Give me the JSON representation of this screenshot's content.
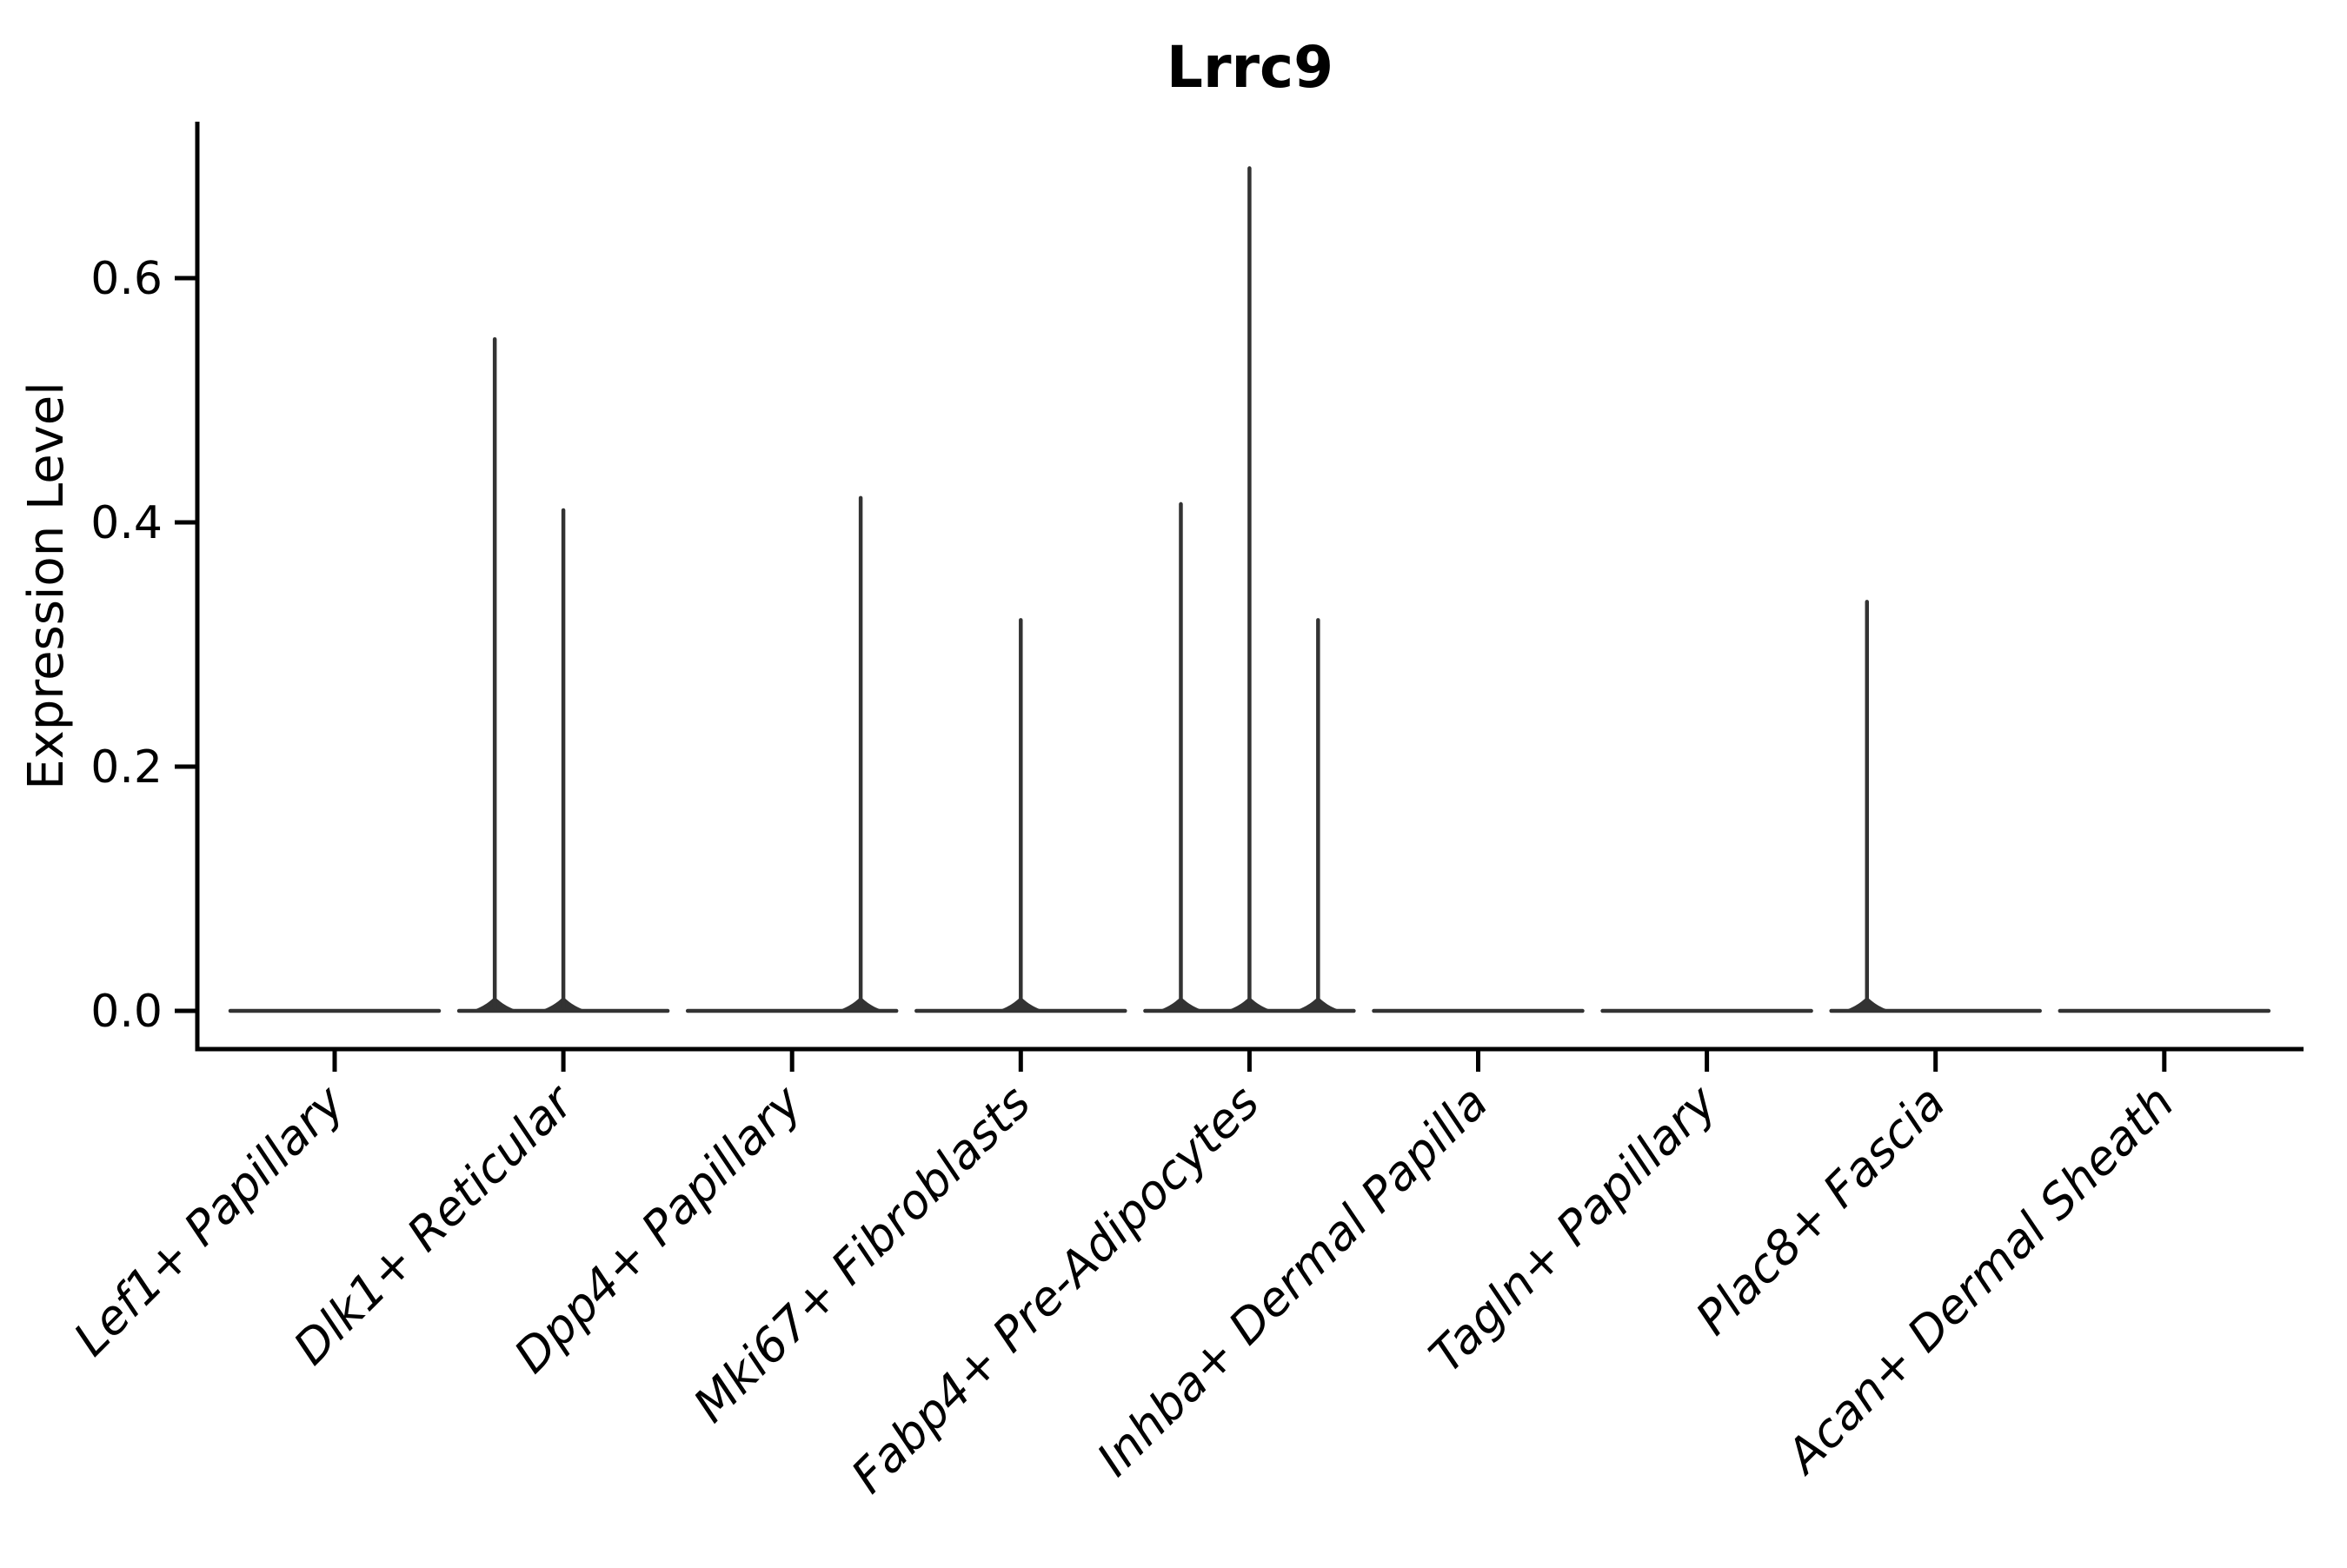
{
  "chart_data": {
    "type": "violin",
    "title": "Lrrc9",
    "ylabel": "Expression Level",
    "xlabel": "",
    "grid": false,
    "legend": null,
    "background": "#ffffff",
    "categories": [
      "Lef1+ Papillary",
      "Dlk1+ Reticular",
      "Dpp4+ Papillary",
      "Mki67+ Fibroblasts",
      "Fabp4+ Pre-Adipocytes",
      "Inhba+ Dermal Papilla",
      "Tagln+ Papillary",
      "Plac8+ Fascia",
      "Acan+ Dermal Sheath"
    ],
    "yticks": [
      0.0,
      0.2,
      0.4,
      0.6
    ],
    "ytick_labels": [
      "0.0",
      "0.2",
      "0.4",
      "0.6"
    ],
    "ylim": [
      -0.03,
      0.73
    ],
    "x_label_rotation_deg": 45,
    "x_labels_italic": true,
    "violin_color": "#333333",
    "axis_color": "#000000",
    "violins": [
      {
        "category": "Lef1+ Papillary",
        "baseline_value": 0.0,
        "spikes": []
      },
      {
        "category": "Dlk1+ Reticular",
        "baseline_value": 0.0,
        "spikes": [
          {
            "x_offset": -0.3,
            "value": 0.55
          },
          {
            "x_offset": 0.0,
            "value": 0.41
          }
        ]
      },
      {
        "category": "Dpp4+ Papillary",
        "baseline_value": 0.0,
        "spikes": [
          {
            "x_offset": 0.3,
            "value": 0.42
          }
        ]
      },
      {
        "category": "Mki67+ Fibroblasts",
        "baseline_value": 0.0,
        "spikes": [
          {
            "x_offset": 0.0,
            "value": 0.32
          }
        ]
      },
      {
        "category": "Fabp4+ Pre-Adipocytes",
        "baseline_value": 0.0,
        "spikes": [
          {
            "x_offset": -0.3,
            "value": 0.415
          },
          {
            "x_offset": 0.0,
            "value": 0.69
          },
          {
            "x_offset": 0.3,
            "value": 0.32
          }
        ]
      },
      {
        "category": "Inhba+ Dermal Papilla",
        "baseline_value": 0.0,
        "spikes": []
      },
      {
        "category": "Tagln+ Papillary",
        "baseline_value": 0.0,
        "spikes": []
      },
      {
        "category": "Plac8+ Fascia",
        "baseline_value": 0.0,
        "spikes": [
          {
            "x_offset": -0.3,
            "value": 0.335
          }
        ]
      },
      {
        "category": "Acan+ Dermal Sheath",
        "baseline_value": 0.0,
        "spikes": []
      }
    ]
  }
}
